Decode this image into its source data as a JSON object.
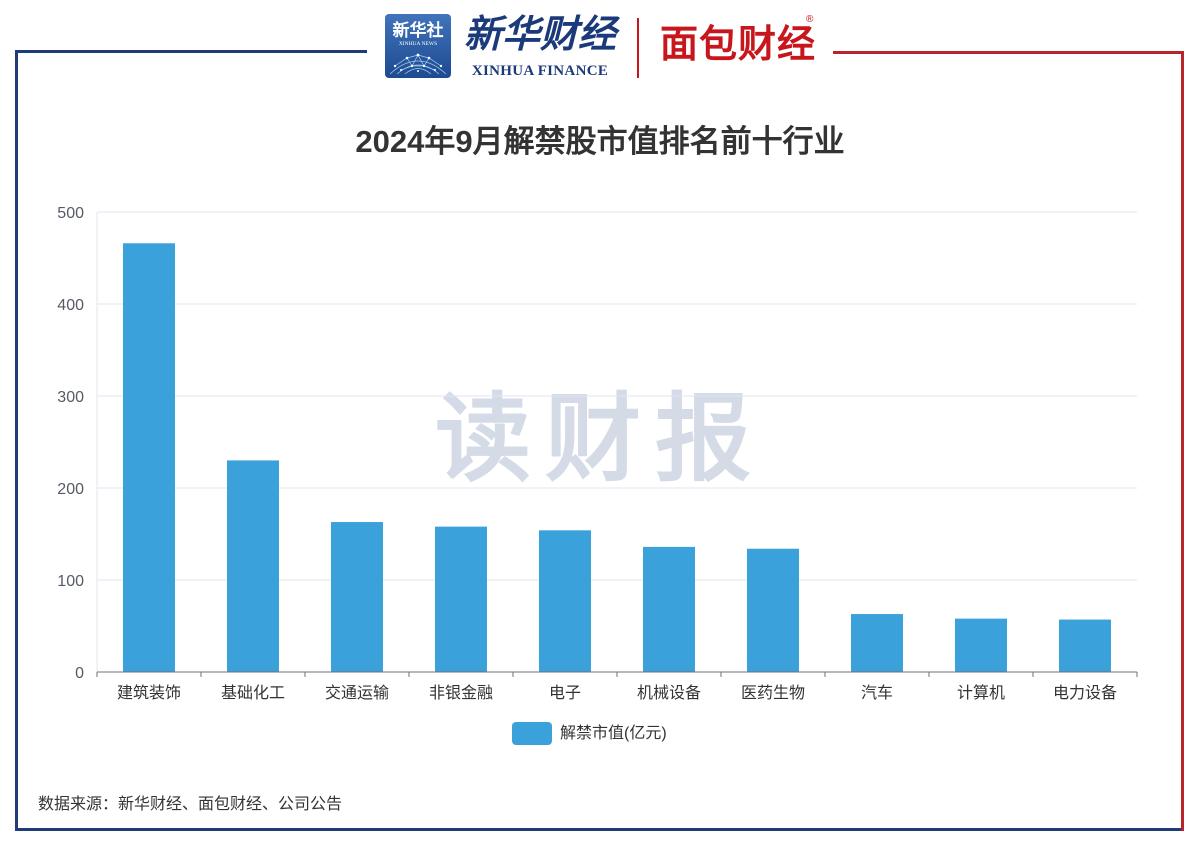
{
  "header": {
    "xinhua_news_logo": {
      "cn": "新华社",
      "en": "XINHUA NEWS"
    },
    "xinhua_finance_logo": {
      "cn": "新华财经",
      "en": "XINHUA FINANCE"
    },
    "mianbao_logo": {
      "cn": "面包财经",
      "mark": "®"
    }
  },
  "watermark": "读财报",
  "source_note": "数据来源：新华财经、面包财经、公司公告",
  "colors": {
    "bar": "#3ba1da",
    "frame_blue": "#1f3c78",
    "frame_red": "#b9232c",
    "xinhua_blue": "#1b3a7a",
    "mianbao_red": "#c8161d"
  },
  "chart_data": {
    "type": "bar",
    "title": "2024年9月解禁股市值排名前十行业",
    "categories": [
      "建筑装饰",
      "基础化工",
      "交通运输",
      "非银金融",
      "电子",
      "机械设备",
      "医药生物",
      "汽车",
      "计算机",
      "电力设备"
    ],
    "series": [
      {
        "name": "解禁市值(亿元)",
        "values": [
          466,
          230,
          163,
          158,
          154,
          136,
          134,
          63,
          58,
          57
        ]
      }
    ],
    "xlabel": "",
    "ylabel": "",
    "ylim": [
      0,
      500
    ],
    "yticks": [
      0,
      100,
      200,
      300,
      400,
      500
    ],
    "grid": true,
    "legend": "bottom-center"
  }
}
